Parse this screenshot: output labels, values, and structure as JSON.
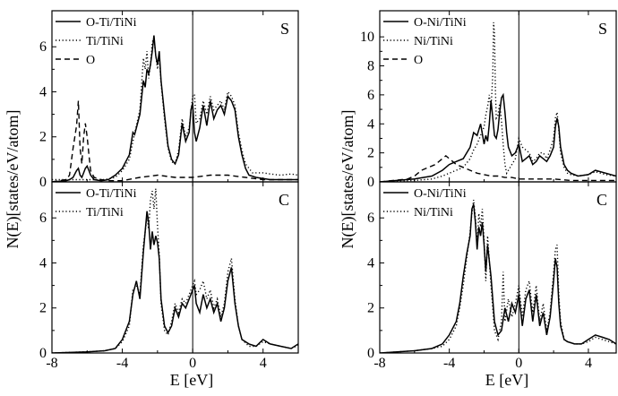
{
  "figure": {
    "left_xlabel": "E [eV]",
    "right_xlabel": "E [eV]",
    "left_ylabel": "N(E)[states/eV/atom]",
    "right_ylabel": "N(E)[states/eV/atom]"
  },
  "chart_data": [
    {
      "id": "left-top",
      "type": "line",
      "panel_label": "S",
      "xlim": [
        -8,
        6
      ],
      "ylim": [
        0,
        7.6
      ],
      "yticks": [
        0,
        2,
        4,
        6
      ],
      "xticks": [
        -8,
        -4,
        0,
        4
      ],
      "legend": [
        "O-Ti/TiNi",
        "Ti/TiNi",
        "O"
      ],
      "series": [
        {
          "name": "O-Ti/TiNi",
          "style": "solid",
          "x": [
            -8,
            -7.2,
            -7.0,
            -6.8,
            -6.6,
            -6.5,
            -6.4,
            -6.3,
            -6.2,
            -6.1,
            -6.0,
            -5.9,
            -5.8,
            -5.6,
            -5.2,
            -4.8,
            -4.4,
            -4.0,
            -3.6,
            -3.4,
            -3.3,
            -3.2,
            -3.0,
            -2.8,
            -2.7,
            -2.6,
            -2.5,
            -2.4,
            -2.3,
            -2.2,
            -2.1,
            -2.0,
            -1.9,
            -1.8,
            -1.6,
            -1.4,
            -1.2,
            -1.0,
            -0.8,
            -0.6,
            -0.4,
            -0.2,
            -0.1,
            0.0,
            0.1,
            0.2,
            0.4,
            0.6,
            0.8,
            1.0,
            1.2,
            1.4,
            1.6,
            1.8,
            2.0,
            2.2,
            2.4,
            2.6,
            2.8,
            3.0,
            3.2,
            3.6,
            4.0,
            4.4,
            4.8,
            5.2,
            5.6,
            6.0
          ],
          "y": [
            0,
            0.05,
            0.1,
            0.2,
            0.5,
            0.6,
            0.3,
            0.2,
            0.4,
            0.6,
            0.7,
            0.5,
            0.3,
            0.1,
            0.05,
            0.1,
            0.3,
            0.6,
            1.2,
            2.2,
            2.1,
            2.4,
            3.0,
            4.5,
            4.2,
            5.0,
            4.8,
            5.2,
            5.8,
            6.5,
            5.6,
            5.2,
            5.8,
            4.5,
            3.0,
            1.6,
            1.0,
            0.8,
            1.2,
            2.6,
            1.8,
            2.2,
            3.2,
            3.5,
            2.2,
            1.8,
            2.4,
            3.4,
            2.5,
            3.6,
            2.8,
            3.2,
            3.4,
            3.0,
            3.8,
            3.6,
            3.2,
            2.0,
            1.2,
            0.6,
            0.3,
            0.2,
            0.15,
            0.1,
            0.1,
            0.1,
            0.1,
            0.1
          ]
        },
        {
          "name": "Ti/TiNi",
          "style": "dotted",
          "x": [
            -8,
            -6,
            -5,
            -4.4,
            -4.0,
            -3.6,
            -3.4,
            -3.2,
            -3.0,
            -2.8,
            -2.7,
            -2.6,
            -2.5,
            -2.4,
            -2.3,
            -2.2,
            -2.1,
            -2.0,
            -1.9,
            -1.8,
            -1.6,
            -1.4,
            -1.2,
            -1.0,
            -0.8,
            -0.6,
            -0.4,
            -0.2,
            0.0,
            0.1,
            0.2,
            0.4,
            0.6,
            0.8,
            1.0,
            1.2,
            1.4,
            1.6,
            1.8,
            2.0,
            2.2,
            2.4,
            2.6,
            2.8,
            3.0,
            3.4,
            4.0,
            4.4,
            5.0,
            5.6,
            6.0
          ],
          "y": [
            0.1,
            0.1,
            0.1,
            0.2,
            0.5,
            1.0,
            1.8,
            2.5,
            3.2,
            5.5,
            5.0,
            5.8,
            4.6,
            5.2,
            6.2,
            6.4,
            5.6,
            5.0,
            5.6,
            4.4,
            2.8,
            1.5,
            0.9,
            0.8,
            1.4,
            2.8,
            2.0,
            2.4,
            3.8,
            3.9,
            2.6,
            2.8,
            3.6,
            3.0,
            3.8,
            3.2,
            3.4,
            3.6,
            3.2,
            4.0,
            3.8,
            3.4,
            2.2,
            1.4,
            0.8,
            0.4,
            0.4,
            0.35,
            0.3,
            0.35,
            0.3
          ]
        },
        {
          "name": "O",
          "style": "dashed",
          "x": [
            -8,
            -7.2,
            -7.0,
            -6.8,
            -6.6,
            -6.5,
            -6.4,
            -6.3,
            -6.2,
            -6.1,
            -6.0,
            -5.9,
            -5.8,
            -5.6,
            -5.2,
            -4.8,
            -4.0,
            -3.0,
            -2.0,
            -1.0,
            0.0,
            1.0,
            2.0,
            3.0,
            4.0,
            5.0,
            6.0
          ],
          "y": [
            0,
            0.1,
            0.3,
            1.5,
            2.5,
            3.6,
            1.5,
            0.8,
            2.0,
            2.6,
            2.0,
            1.2,
            0.5,
            0.2,
            0.1,
            0.05,
            0.05,
            0.2,
            0.3,
            0.2,
            0.2,
            0.3,
            0.3,
            0.2,
            0.1,
            0.1,
            0.1
          ]
        }
      ]
    },
    {
      "id": "left-bottom",
      "type": "line",
      "panel_label": "C",
      "xlim": [
        -8,
        6
      ],
      "ylim": [
        0,
        7.6
      ],
      "yticks": [
        0,
        2,
        4,
        6
      ],
      "xticks": [
        -8,
        -4,
        0,
        4
      ],
      "legend": [
        "O-Ti/TiNi",
        "Ti/TiNi"
      ],
      "series": [
        {
          "name": "O-Ti/TiNi",
          "style": "solid",
          "x": [
            -8,
            -6,
            -5,
            -4.4,
            -4.0,
            -3.6,
            -3.4,
            -3.2,
            -3.0,
            -2.8,
            -2.6,
            -2.5,
            -2.4,
            -2.3,
            -2.2,
            -2.1,
            -2.0,
            -1.9,
            -1.8,
            -1.6,
            -1.4,
            -1.2,
            -1.0,
            -0.8,
            -0.6,
            -0.4,
            -0.2,
            0.0,
            0.1,
            0.2,
            0.4,
            0.6,
            0.8,
            1.0,
            1.2,
            1.4,
            1.6,
            1.8,
            2.0,
            2.2,
            2.4,
            2.6,
            2.8,
            3.2,
            3.6,
            4.0,
            4.4,
            5.0,
            5.6,
            6.0
          ],
          "y": [
            0,
            0.05,
            0.1,
            0.2,
            0.6,
            1.4,
            2.6,
            3.2,
            2.4,
            4.5,
            6.3,
            5.8,
            4.6,
            5.4,
            4.8,
            5.2,
            4.9,
            4.2,
            2.4,
            1.2,
            0.9,
            1.2,
            2.0,
            1.6,
            2.2,
            2.0,
            2.4,
            2.8,
            3.0,
            2.2,
            1.8,
            2.6,
            2.0,
            2.4,
            1.8,
            2.2,
            1.4,
            2.0,
            3.2,
            3.8,
            2.2,
            1.2,
            0.6,
            0.4,
            0.3,
            0.6,
            0.4,
            0.3,
            0.2,
            0.4
          ]
        },
        {
          "name": "Ti/TiNi",
          "style": "dotted",
          "x": [
            -8,
            -6,
            -5,
            -4.4,
            -4.0,
            -3.6,
            -3.4,
            -3.2,
            -3.0,
            -2.8,
            -2.6,
            -2.5,
            -2.4,
            -2.3,
            -2.2,
            -2.1,
            -2.0,
            -1.9,
            -1.8,
            -1.6,
            -1.4,
            -1.2,
            -1.0,
            -0.8,
            -0.6,
            -0.4,
            -0.2,
            0.0,
            0.1,
            0.2,
            0.4,
            0.6,
            0.8,
            1.0,
            1.2,
            1.4,
            1.6,
            1.8,
            2.0,
            2.2,
            2.4,
            2.6,
            2.8,
            3.2,
            3.6,
            4.0,
            4.4,
            5.0,
            5.6,
            6.0
          ],
          "y": [
            0,
            0.05,
            0.1,
            0.2,
            0.5,
            1.2,
            2.8,
            3.0,
            2.6,
            4.8,
            6.0,
            5.5,
            6.8,
            7.2,
            6.4,
            7.3,
            5.6,
            4.4,
            2.2,
            1.0,
            0.8,
            1.4,
            2.2,
            1.8,
            2.4,
            2.2,
            2.6,
            3.0,
            3.2,
            2.6,
            2.8,
            3.2,
            2.4,
            2.8,
            2.0,
            2.4,
            1.6,
            2.2,
            3.6,
            4.2,
            2.4,
            1.2,
            0.6,
            0.3,
            0.3,
            0.5,
            0.4,
            0.3,
            0.2,
            0.35
          ]
        }
      ]
    },
    {
      "id": "right-top",
      "type": "line",
      "panel_label": "S",
      "xlim": [
        -8,
        5.6
      ],
      "ylim": [
        0,
        11.8
      ],
      "yticks": [
        0,
        2,
        4,
        6,
        8,
        10
      ],
      "xticks": [
        -8,
        -4,
        0,
        4
      ],
      "legend": [
        "O-Ni/TiNi",
        "Ni/TiNi",
        "O"
      ],
      "series": [
        {
          "name": "O-Ni/TiNi",
          "style": "solid",
          "x": [
            -8,
            -7,
            -6,
            -5,
            -4.4,
            -4.0,
            -3.6,
            -3.2,
            -2.8,
            -2.6,
            -2.4,
            -2.2,
            -2.0,
            -1.9,
            -1.8,
            -1.7,
            -1.6,
            -1.5,
            -1.4,
            -1.3,
            -1.2,
            -1.1,
            -1.0,
            -0.9,
            -0.8,
            -0.7,
            -0.6,
            -0.4,
            -0.2,
            0.0,
            0.2,
            0.4,
            0.6,
            0.8,
            1.0,
            1.2,
            1.4,
            1.6,
            1.8,
            2.0,
            2.1,
            2.2,
            2.3,
            2.4,
            2.6,
            2.8,
            3.0,
            3.4,
            4.0,
            4.4,
            5.0,
            5.6
          ],
          "y": [
            0,
            0.1,
            0.2,
            0.4,
            0.8,
            1.2,
            1.4,
            1.6,
            2.4,
            3.4,
            3.2,
            4.0,
            2.6,
            3.2,
            2.8,
            4.0,
            5.6,
            4.4,
            3.2,
            3.0,
            3.6,
            4.8,
            5.8,
            6.0,
            4.8,
            3.4,
            2.4,
            1.8,
            2.0,
            2.6,
            1.4,
            1.6,
            1.8,
            1.2,
            1.4,
            1.8,
            1.6,
            1.4,
            1.8,
            2.4,
            3.8,
            4.4,
            3.8,
            2.4,
            1.2,
            0.8,
            0.6,
            0.4,
            0.5,
            0.8,
            0.6,
            0.4
          ]
        },
        {
          "name": "Ni/TiNi",
          "style": "dotted",
          "x": [
            -8,
            -7,
            -6,
            -5,
            -4.4,
            -4.0,
            -3.6,
            -3.2,
            -2.8,
            -2.6,
            -2.4,
            -2.2,
            -2.0,
            -1.9,
            -1.8,
            -1.7,
            -1.6,
            -1.5,
            -1.45,
            -1.4,
            -1.35,
            -1.3,
            -1.2,
            -1.1,
            -1.0,
            -0.9,
            -0.8,
            -0.7,
            -0.6,
            -0.4,
            -0.2,
            0.0,
            0.2,
            0.4,
            0.6,
            0.8,
            1.0,
            1.2,
            1.4,
            1.6,
            1.8,
            2.0,
            2.1,
            2.2,
            2.3,
            2.4,
            2.6,
            2.8,
            3.0,
            3.4,
            4.0,
            4.4,
            5.0,
            5.6
          ],
          "y": [
            0,
            0.05,
            0.1,
            0.2,
            0.4,
            0.6,
            0.8,
            1.0,
            1.6,
            2.2,
            2.6,
            3.2,
            3.8,
            4.6,
            5.2,
            6.0,
            5.0,
            7.4,
            11.0,
            10.2,
            6.4,
            4.4,
            4.6,
            5.4,
            4.2,
            2.6,
            1.2,
            0.6,
            0.8,
            1.2,
            1.6,
            3.0,
            2.4,
            2.2,
            2.0,
            1.4,
            1.6,
            2.0,
            2.0,
            1.6,
            2.2,
            3.0,
            4.4,
            4.8,
            3.6,
            2.0,
            1.0,
            0.6,
            0.5,
            0.4,
            0.5,
            0.7,
            0.5,
            0.4
          ]
        },
        {
          "name": "O",
          "style": "dashed",
          "x": [
            -8,
            -6.4,
            -6.0,
            -5.6,
            -5.2,
            -4.8,
            -4.4,
            -4.2,
            -4.0,
            -3.8,
            -3.6,
            -3.2,
            -2.8,
            -2.4,
            -2.0,
            -1.6,
            -1.2,
            -0.8,
            -0.4,
            0.0,
            1.0,
            2.0,
            3.0,
            4.0,
            5.6
          ],
          "y": [
            0,
            0.2,
            0.4,
            0.8,
            1.0,
            1.2,
            1.6,
            1.8,
            1.6,
            1.4,
            1.2,
            1.0,
            0.8,
            0.6,
            0.5,
            0.4,
            0.4,
            0.3,
            0.3,
            0.2,
            0.2,
            0.2,
            0.1,
            0.1,
            0.1
          ]
        }
      ]
    },
    {
      "id": "right-bottom",
      "type": "line",
      "panel_label": "C",
      "xlim": [
        -8,
        5.6
      ],
      "ylim": [
        0,
        7.6
      ],
      "yticks": [
        0,
        2,
        4,
        6
      ],
      "xticks": [
        -8,
        -4,
        0,
        4
      ],
      "legend": [
        "O-Ni/TiNi",
        "Ni/TiNi"
      ],
      "series": [
        {
          "name": "O-Ni/TiNi",
          "style": "solid",
          "x": [
            -8,
            -6,
            -5,
            -4.4,
            -4.0,
            -3.6,
            -3.4,
            -3.2,
            -3.0,
            -2.8,
            -2.7,
            -2.6,
            -2.5,
            -2.4,
            -2.3,
            -2.2,
            -2.1,
            -2.0,
            -1.9,
            -1.8,
            -1.6,
            -1.4,
            -1.2,
            -1.0,
            -0.8,
            -0.6,
            -0.4,
            -0.2,
            0.0,
            0.2,
            0.4,
            0.6,
            0.8,
            1.0,
            1.2,
            1.4,
            1.6,
            1.8,
            2.0,
            2.1,
            2.2,
            2.3,
            2.4,
            2.6,
            2.8,
            3.2,
            3.6,
            4.0,
            4.4,
            4.8,
            5.2,
            5.6
          ],
          "y": [
            0,
            0.1,
            0.2,
            0.4,
            0.8,
            1.4,
            2.2,
            3.4,
            4.4,
            5.2,
            6.4,
            6.6,
            5.8,
            4.6,
            5.6,
            5.2,
            5.8,
            4.8,
            3.6,
            4.8,
            3.4,
            1.4,
            0.8,
            1.0,
            2.0,
            1.4,
            2.2,
            1.8,
            2.6,
            1.2,
            2.4,
            2.8,
            1.4,
            2.6,
            1.2,
            1.8,
            0.8,
            1.6,
            3.2,
            4.2,
            3.8,
            2.2,
            1.2,
            0.6,
            0.5,
            0.4,
            0.4,
            0.6,
            0.8,
            0.7,
            0.6,
            0.4
          ]
        },
        {
          "name": "Ni/TiNi",
          "style": "dotted",
          "x": [
            -8,
            -6,
            -5,
            -4.4,
            -4.0,
            -3.6,
            -3.4,
            -3.2,
            -3.0,
            -2.8,
            -2.7,
            -2.6,
            -2.5,
            -2.4,
            -2.3,
            -2.2,
            -2.1,
            -2.0,
            -1.9,
            -1.8,
            -1.6,
            -1.4,
            -1.2,
            -1.0,
            -0.9,
            -0.8,
            -0.6,
            -0.4,
            -0.2,
            0.0,
            0.2,
            0.4,
            0.6,
            0.8,
            1.0,
            1.2,
            1.4,
            1.6,
            1.8,
            2.0,
            2.1,
            2.2,
            2.3,
            2.4,
            2.6,
            2.8,
            3.2,
            3.6,
            4.0,
            4.4,
            4.8,
            5.2,
            5.6
          ],
          "y": [
            0,
            0.1,
            0.2,
            0.3,
            0.6,
            1.2,
            2.0,
            3.0,
            4.2,
            5.4,
            6.2,
            6.8,
            6.0,
            4.8,
            6.2,
            5.6,
            6.4,
            5.0,
            3.2,
            5.2,
            3.0,
            1.0,
            0.6,
            1.4,
            3.6,
            1.4,
            2.4,
            1.6,
            2.2,
            3.0,
            1.6,
            2.8,
            3.2,
            1.8,
            3.0,
            1.4,
            2.2,
            1.0,
            1.8,
            3.6,
            4.6,
            4.8,
            2.6,
            1.4,
            0.6,
            0.5,
            0.4,
            0.4,
            0.5,
            0.7,
            0.6,
            0.5,
            0.4
          ]
        }
      ]
    }
  ]
}
